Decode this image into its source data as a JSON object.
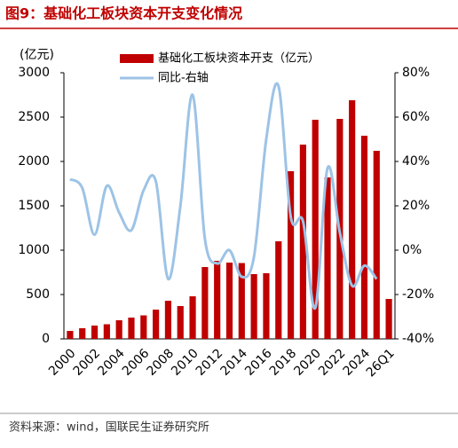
{
  "header": {
    "title": "图9：基础化工板块资本开支变化情况"
  },
  "chart_data": {
    "type": "bar_line",
    "y_label": "(亿元)",
    "categories": [
      "2000",
      null,
      "2002",
      null,
      "2004",
      null,
      "2006",
      null,
      "2008",
      null,
      "2010",
      null,
      "2012",
      null,
      "2014",
      null,
      "2016",
      null,
      "2018",
      null,
      "2020",
      null,
      "2022",
      null,
      "2024",
      null,
      "26Q1"
    ],
    "series": [
      {
        "name": "基础化工板块资本开支（亿元）",
        "color": "#c00000",
        "kind": "bar",
        "values": [
          90,
          120,
          150,
          165,
          210,
          240,
          265,
          330,
          430,
          370,
          480,
          810,
          880,
          860,
          855,
          730,
          740,
          1100,
          1890,
          2190,
          2470,
          1820,
          2480,
          2690,
          2290,
          2120,
          450
        ]
      },
      {
        "name": "同比-右轴",
        "color": "#9dc3e6",
        "kind": "line",
        "axis": "y2",
        "values": [
          32,
          28,
          7,
          29,
          17,
          9,
          27,
          31,
          -13,
          20,
          70,
          5,
          -6,
          0,
          -12,
          -3,
          50,
          74,
          15,
          13,
          -26,
          37,
          8,
          -16,
          -7,
          -13,
          null
        ]
      }
    ],
    "ylim": [
      0,
      3000
    ],
    "yticks": [
      0,
      500,
      1000,
      1500,
      2000,
      2500,
      3000
    ],
    "y2lim": [
      -40,
      80
    ],
    "y2ticks": [
      {
        "value": -40,
        "label": "-40%"
      },
      {
        "value": -20,
        "label": "-20%"
      },
      {
        "value": 0,
        "label": "0%"
      },
      {
        "value": 20,
        "label": "20%"
      },
      {
        "value": 40,
        "label": "40%"
      },
      {
        "value": 60,
        "label": "60%"
      },
      {
        "value": 80,
        "label": "80%"
      }
    ]
  },
  "footer": {
    "source": "资料来源：wind，国联民生证券研究所"
  }
}
